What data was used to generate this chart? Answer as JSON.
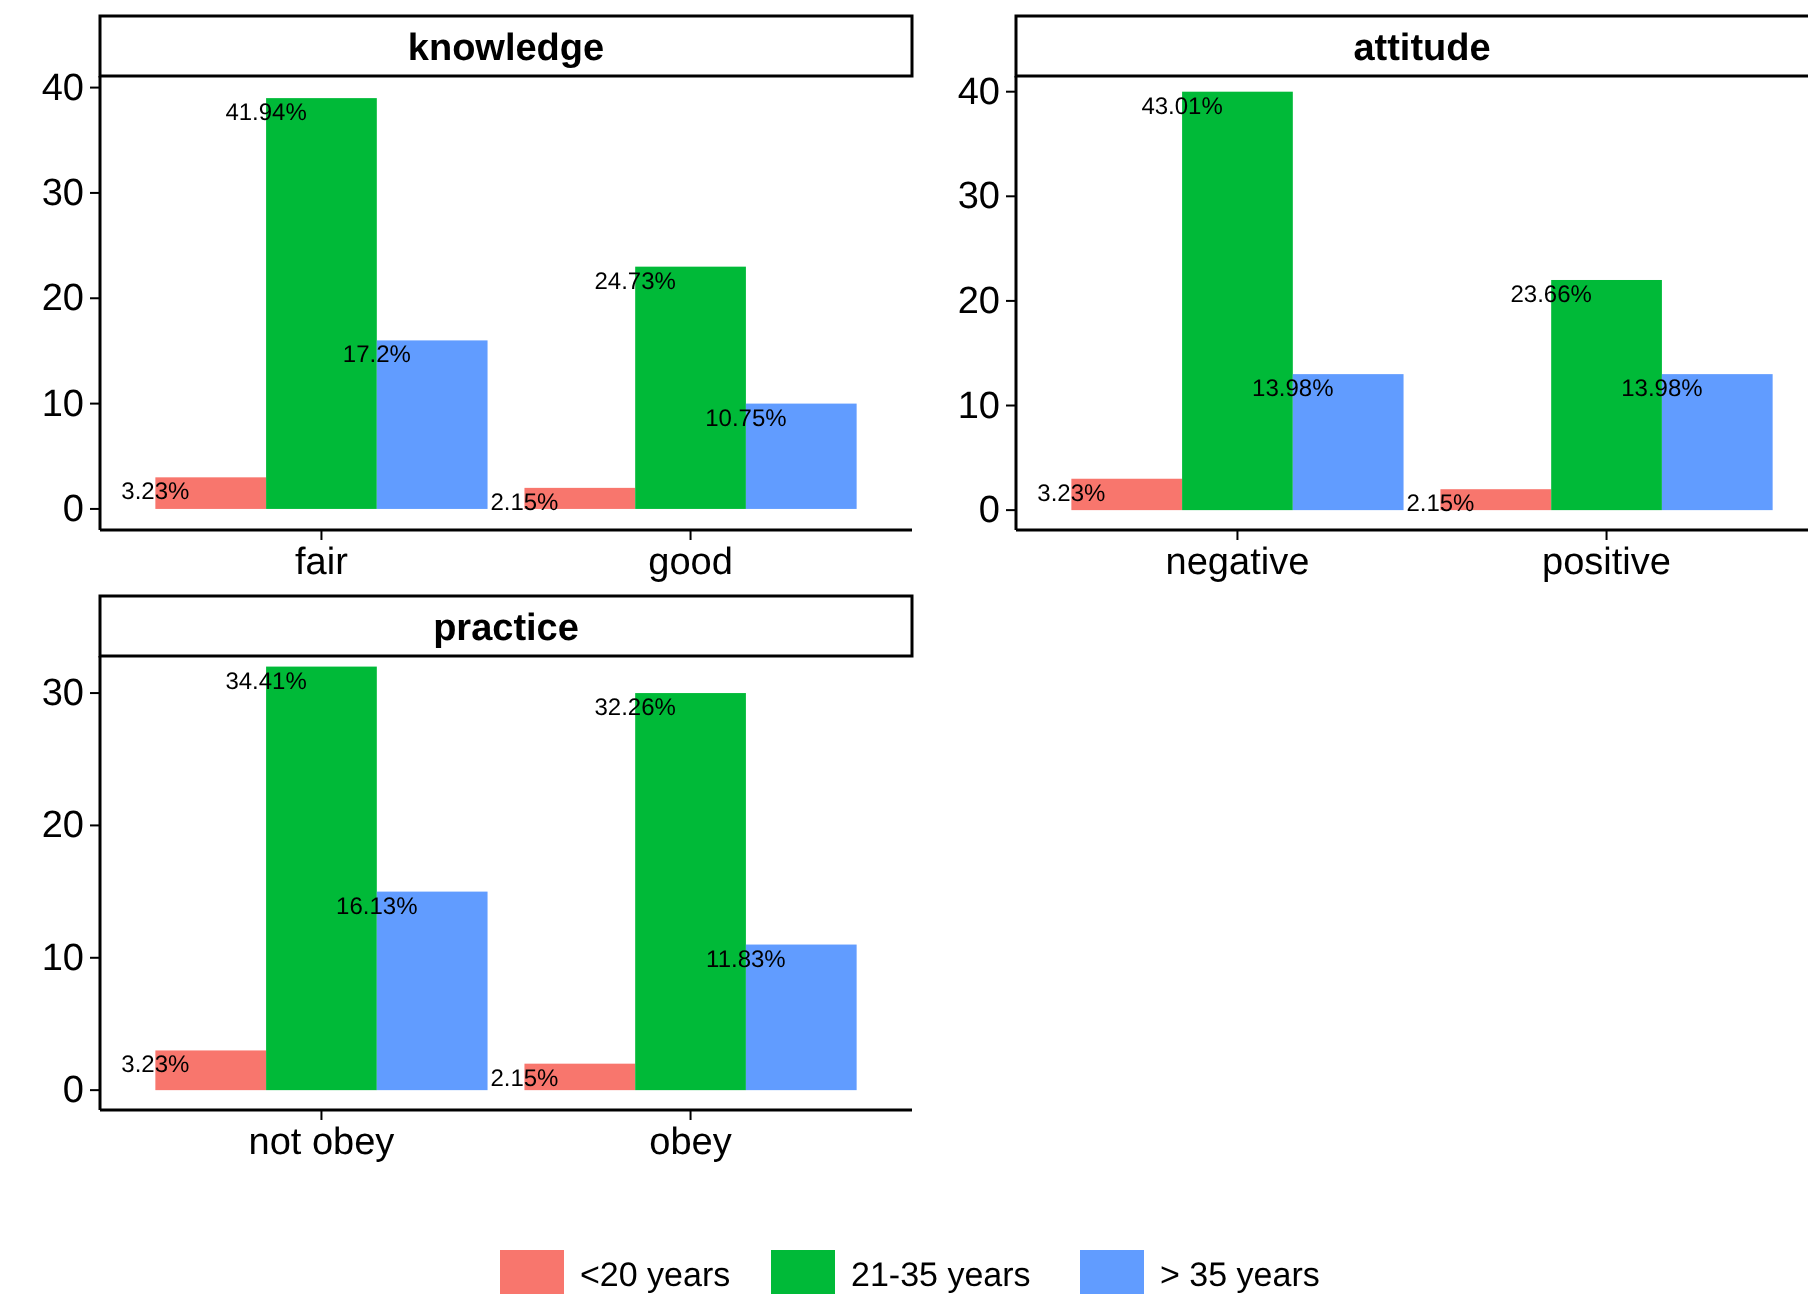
{
  "chart_data": [
    {
      "type": "bar",
      "title": "knowledge",
      "categories": [
        "fair",
        "good"
      ],
      "ylim": [
        -2,
        41.1
      ],
      "yticks": [
        0,
        10,
        20,
        30,
        40
      ],
      "grid": false,
      "legend": "bottom",
      "series": [
        {
          "name": "<20 years",
          "color": "#f8766d",
          "values": [
            3,
            2
          ]
        },
        {
          "name": "21-35 years",
          "color": "#00ba38",
          "values": [
            39,
            23
          ]
        },
        {
          "name": "> 35 years",
          "color": "#619cff",
          "values": [
            16,
            10
          ]
        }
      ],
      "annotations": [
        "3.23%",
        "2.15%",
        "41.94%",
        "24.73%",
        "17.2%",
        "10.75%"
      ]
    },
    {
      "type": "bar",
      "title": "attitude",
      "categories": [
        "negative",
        "positive"
      ],
      "ylim": [
        -1.9,
        41.5
      ],
      "yticks": [
        0,
        10,
        20,
        30,
        40
      ],
      "grid": false,
      "legend": "bottom",
      "series": [
        {
          "color": "#f8766d",
          "values": [
            3,
            2
          ]
        },
        {
          "color": "#00ba38",
          "values": [
            40,
            22
          ]
        },
        {
          "color": "#619cff",
          "values": [
            13,
            13
          ]
        }
      ],
      "annotations": [
        "3.23%",
        "2.15%",
        "43.01%",
        "23.66%",
        "13.98%",
        "13.98%"
      ]
    },
    {
      "type": "bar",
      "title": "practice",
      "categories": [
        "not obey",
        "obey"
      ],
      "ylim": [
        -1.5,
        32.8
      ],
      "yticks": [
        0,
        10,
        20,
        30
      ],
      "grid": false,
      "legend": "bottom",
      "series": [
        {
          "color": "#f8766d",
          "values": [
            3,
            2
          ]
        },
        {
          "color": "#00ba38",
          "values": [
            32,
            30
          ]
        },
        {
          "color": "#619cff",
          "values": [
            15,
            11
          ]
        }
      ],
      "annotations": [
        "3.23%",
        "2.15%",
        "34.41%",
        "32.26%",
        "16.13%",
        "11.83%"
      ]
    }
  ]
}
